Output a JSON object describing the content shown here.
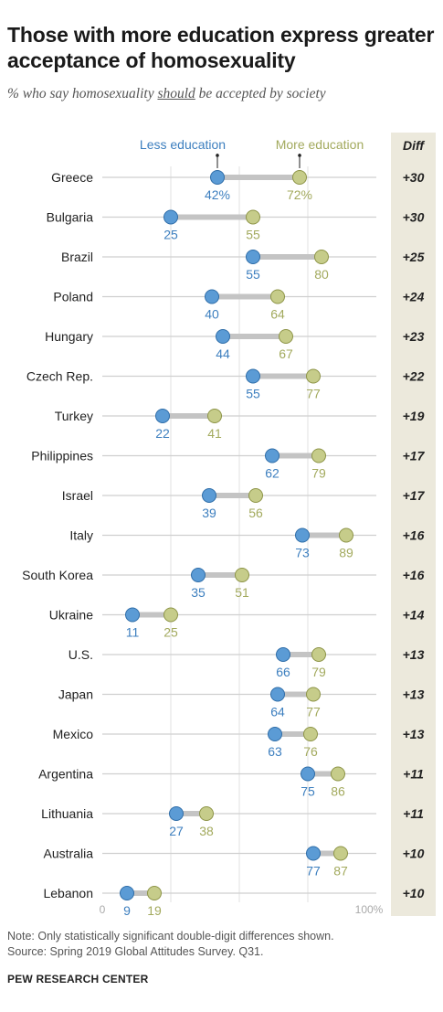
{
  "title": "Those with more education express greater acceptance of homosexuality",
  "subtitle": {
    "before": "% who say homosexuality ",
    "emphasis": "should",
    "after": " be accepted by society"
  },
  "colors": {
    "less": "#5b9bd5",
    "less_text": "#3d7fbf",
    "more": "#c6cc8a",
    "more_text": "#a3aa5e",
    "diff_bg": "#ece9dc",
    "line": "#cfcfcf",
    "connector": "#c4c4c4"
  },
  "chart_data": {
    "type": "dot",
    "xlim": [
      0,
      100
    ],
    "axis_labels": {
      "min": "0",
      "max": "100%"
    },
    "diff_header": "Diff",
    "series": [
      {
        "name": "Less education",
        "key": "less"
      },
      {
        "name": "More education",
        "key": "more"
      }
    ],
    "rows": [
      {
        "country": "Greece",
        "less": 42,
        "more": 72,
        "less_label": "42%",
        "more_label": "72%",
        "diff": "+30"
      },
      {
        "country": "Bulgaria",
        "less": 25,
        "more": 55,
        "less_label": "25",
        "more_label": "55",
        "diff": "+30"
      },
      {
        "country": "Brazil",
        "less": 55,
        "more": 80,
        "less_label": "55",
        "more_label": "80",
        "diff": "+25"
      },
      {
        "country": "Poland",
        "less": 40,
        "more": 64,
        "less_label": "40",
        "more_label": "64",
        "diff": "+24"
      },
      {
        "country": "Hungary",
        "less": 44,
        "more": 67,
        "less_label": "44",
        "more_label": "67",
        "diff": "+23"
      },
      {
        "country": "Czech Rep.",
        "less": 55,
        "more": 77,
        "less_label": "55",
        "more_label": "77",
        "diff": "+22"
      },
      {
        "country": "Turkey",
        "less": 22,
        "more": 41,
        "less_label": "22",
        "more_label": "41",
        "diff": "+19"
      },
      {
        "country": "Philippines",
        "less": 62,
        "more": 79,
        "less_label": "62",
        "more_label": "79",
        "diff": "+17"
      },
      {
        "country": "Israel",
        "less": 39,
        "more": 56,
        "less_label": "39",
        "more_label": "56",
        "diff": "+17"
      },
      {
        "country": "Italy",
        "less": 73,
        "more": 89,
        "less_label": "73",
        "more_label": "89",
        "diff": "+16"
      },
      {
        "country": "South Korea",
        "less": 35,
        "more": 51,
        "less_label": "35",
        "more_label": "51",
        "diff": "+16"
      },
      {
        "country": "Ukraine",
        "less": 11,
        "more": 25,
        "less_label": "11",
        "more_label": "25",
        "diff": "+14"
      },
      {
        "country": "U.S.",
        "less": 66,
        "more": 79,
        "less_label": "66",
        "more_label": "79",
        "diff": "+13"
      },
      {
        "country": "Japan",
        "less": 64,
        "more": 77,
        "less_label": "64",
        "more_label": "77",
        "diff": "+13"
      },
      {
        "country": "Mexico",
        "less": 63,
        "more": 76,
        "less_label": "63",
        "more_label": "76",
        "diff": "+13"
      },
      {
        "country": "Argentina",
        "less": 75,
        "more": 86,
        "less_label": "75",
        "more_label": "86",
        "diff": "+11"
      },
      {
        "country": "Lithuania",
        "less": 27,
        "more": 38,
        "less_label": "27",
        "more_label": "38",
        "diff": "+11"
      },
      {
        "country": "Australia",
        "less": 77,
        "more": 87,
        "less_label": "77",
        "more_label": "87",
        "diff": "+10"
      },
      {
        "country": "Lebanon",
        "less": 9,
        "more": 19,
        "less_label": "9",
        "more_label": "19",
        "diff": "+10"
      }
    ]
  },
  "note": "Note: Only statistically significant double-digit differences shown.",
  "source": "Source: Spring 2019 Global Attitudes Survey. Q31.",
  "organization": "PEW RESEARCH CENTER"
}
